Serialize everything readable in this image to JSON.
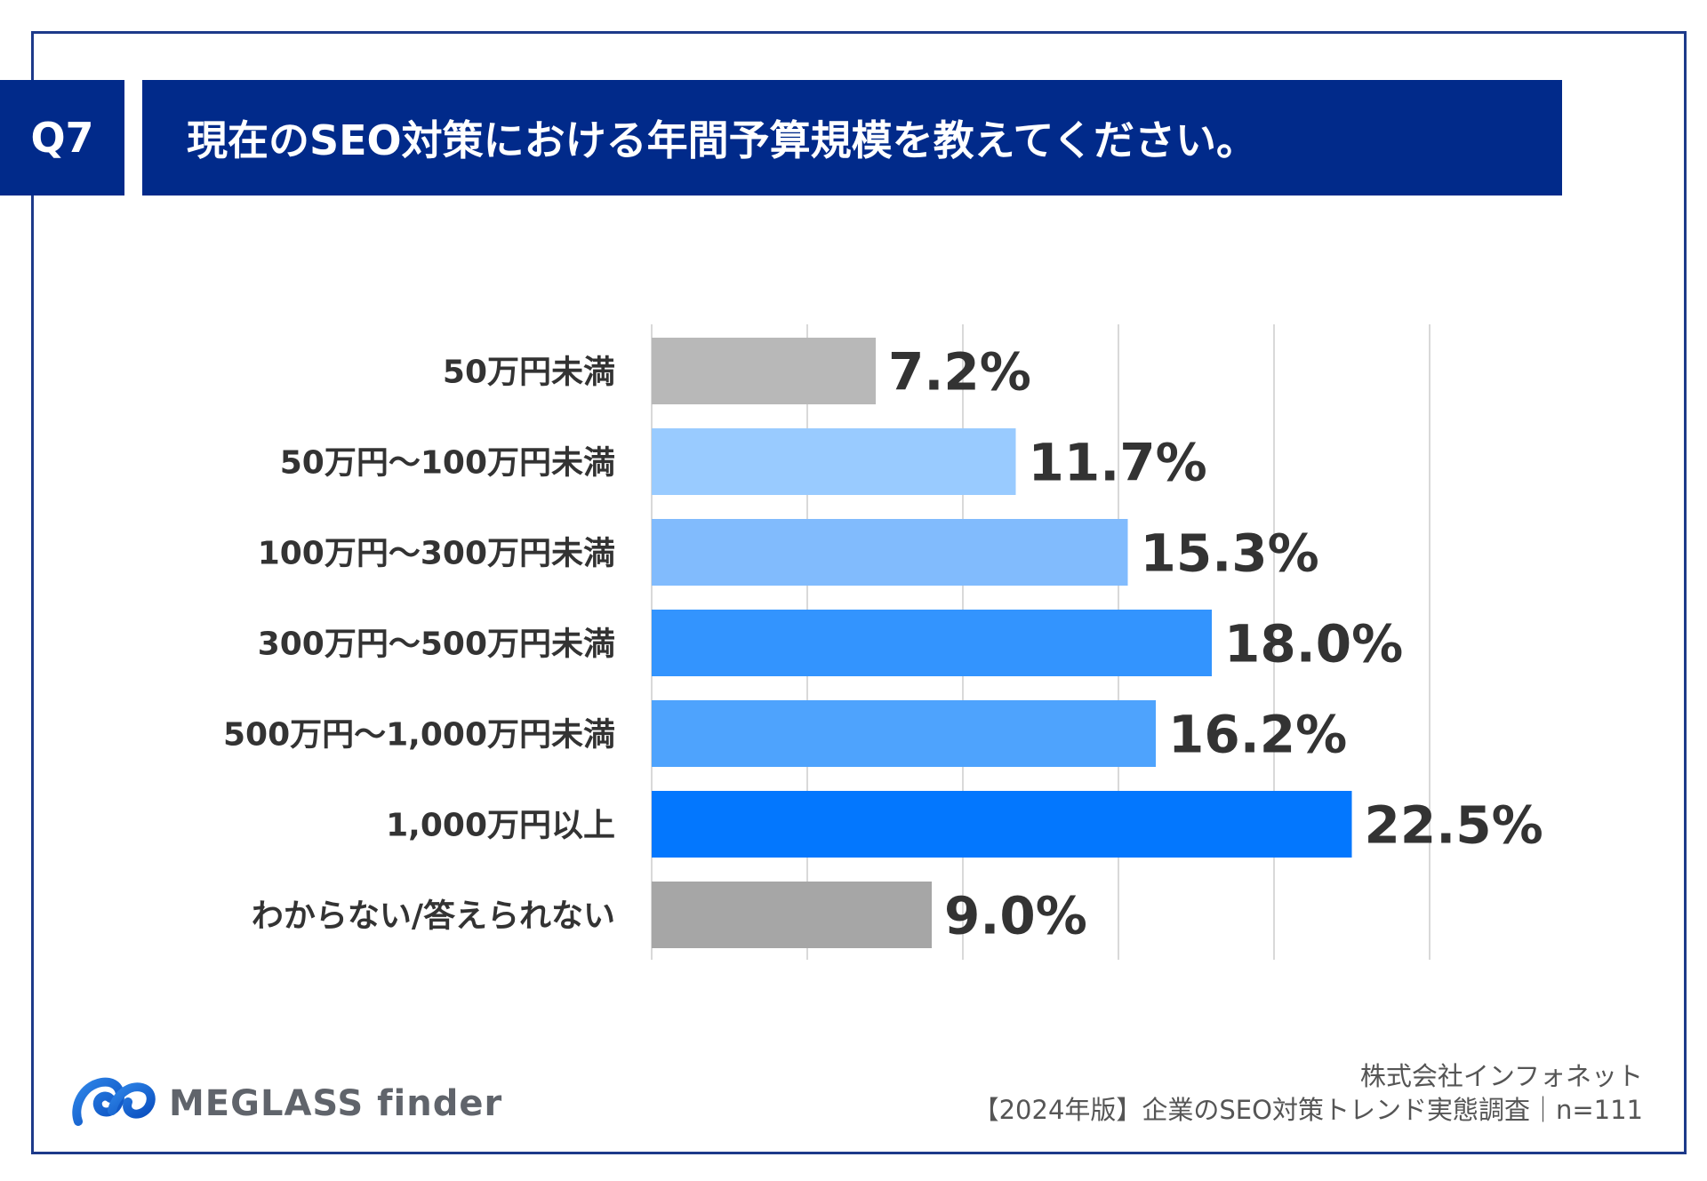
{
  "question": {
    "badge": "Q7",
    "title": "現在のSEO対策における年間予算規模を教えてください。"
  },
  "colors": {
    "navy": "#012a8a",
    "frame": "#1d3a8a",
    "gray_light": "#b8b8b8",
    "gray_dark": "#a6a6a6",
    "blue_1": "#99cbff",
    "blue_2": "#81bbfd",
    "blue_3": "#3394fe",
    "blue_4": "#4ea3fd",
    "blue_5": "#0377fe"
  },
  "chart_data": {
    "type": "bar",
    "orientation": "horizontal",
    "categories": [
      "50万円未満",
      "50万円〜100万円未満",
      "100万円〜300万円未満",
      "300万円〜500万円未満",
      "500万円〜1,000万円未満",
      "1,000万円以上",
      "わからない/答えられない"
    ],
    "values": [
      7.2,
      11.7,
      15.3,
      18.0,
      16.2,
      22.5,
      9.0
    ],
    "value_labels": [
      "7.2%",
      "11.7%",
      "15.3%",
      "18.0%",
      "16.2%",
      "22.5%",
      "9.0%"
    ],
    "bar_colors": [
      "#b8b8b8",
      "#99cbff",
      "#81bbfd",
      "#3394fe",
      "#4ea3fd",
      "#0377fe",
      "#a6a6a6"
    ],
    "xlim": [
      0,
      25
    ],
    "grid": true,
    "legend": "none"
  },
  "branding": {
    "logo_text": "MEGLASS finder"
  },
  "source": {
    "company": "株式会社インフォネット",
    "survey": "【2024年版】企業のSEO対策トレンド実態調査｜n=111"
  }
}
